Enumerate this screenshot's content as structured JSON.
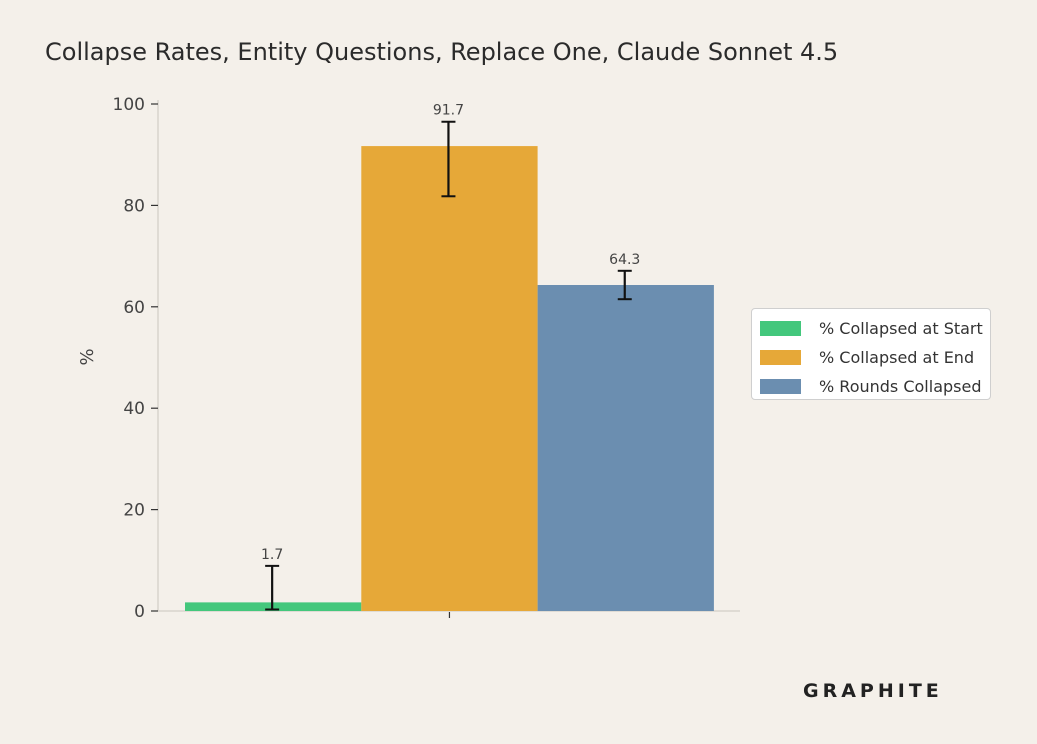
{
  "chart_data": {
    "type": "bar",
    "title": "Collapse Rates, Entity Questions, Replace One, Claude Sonnet 4.5",
    "ylabel": "%",
    "xlabel": "",
    "ylim": [
      0,
      100
    ],
    "yticks": [
      0,
      20,
      40,
      60,
      80,
      100
    ],
    "grid": false,
    "legend_position": "right",
    "series": [
      {
        "name": "% Collapsed at Start",
        "value": 1.7,
        "error_low": 0.3,
        "error_high": 8.9,
        "label": "1.7",
        "color": "#43c77c"
      },
      {
        "name": "% Collapsed at End",
        "value": 91.7,
        "error_low": 81.8,
        "error_high": 96.5,
        "label": "91.7",
        "color": "#e6a838"
      },
      {
        "name": "% Rounds Collapsed",
        "value": 64.3,
        "error_low": 61.5,
        "error_high": 67.1,
        "label": "64.3",
        "color": "#6b8eb0"
      }
    ]
  },
  "brand": {
    "logo_text": "GRAPHITE"
  }
}
